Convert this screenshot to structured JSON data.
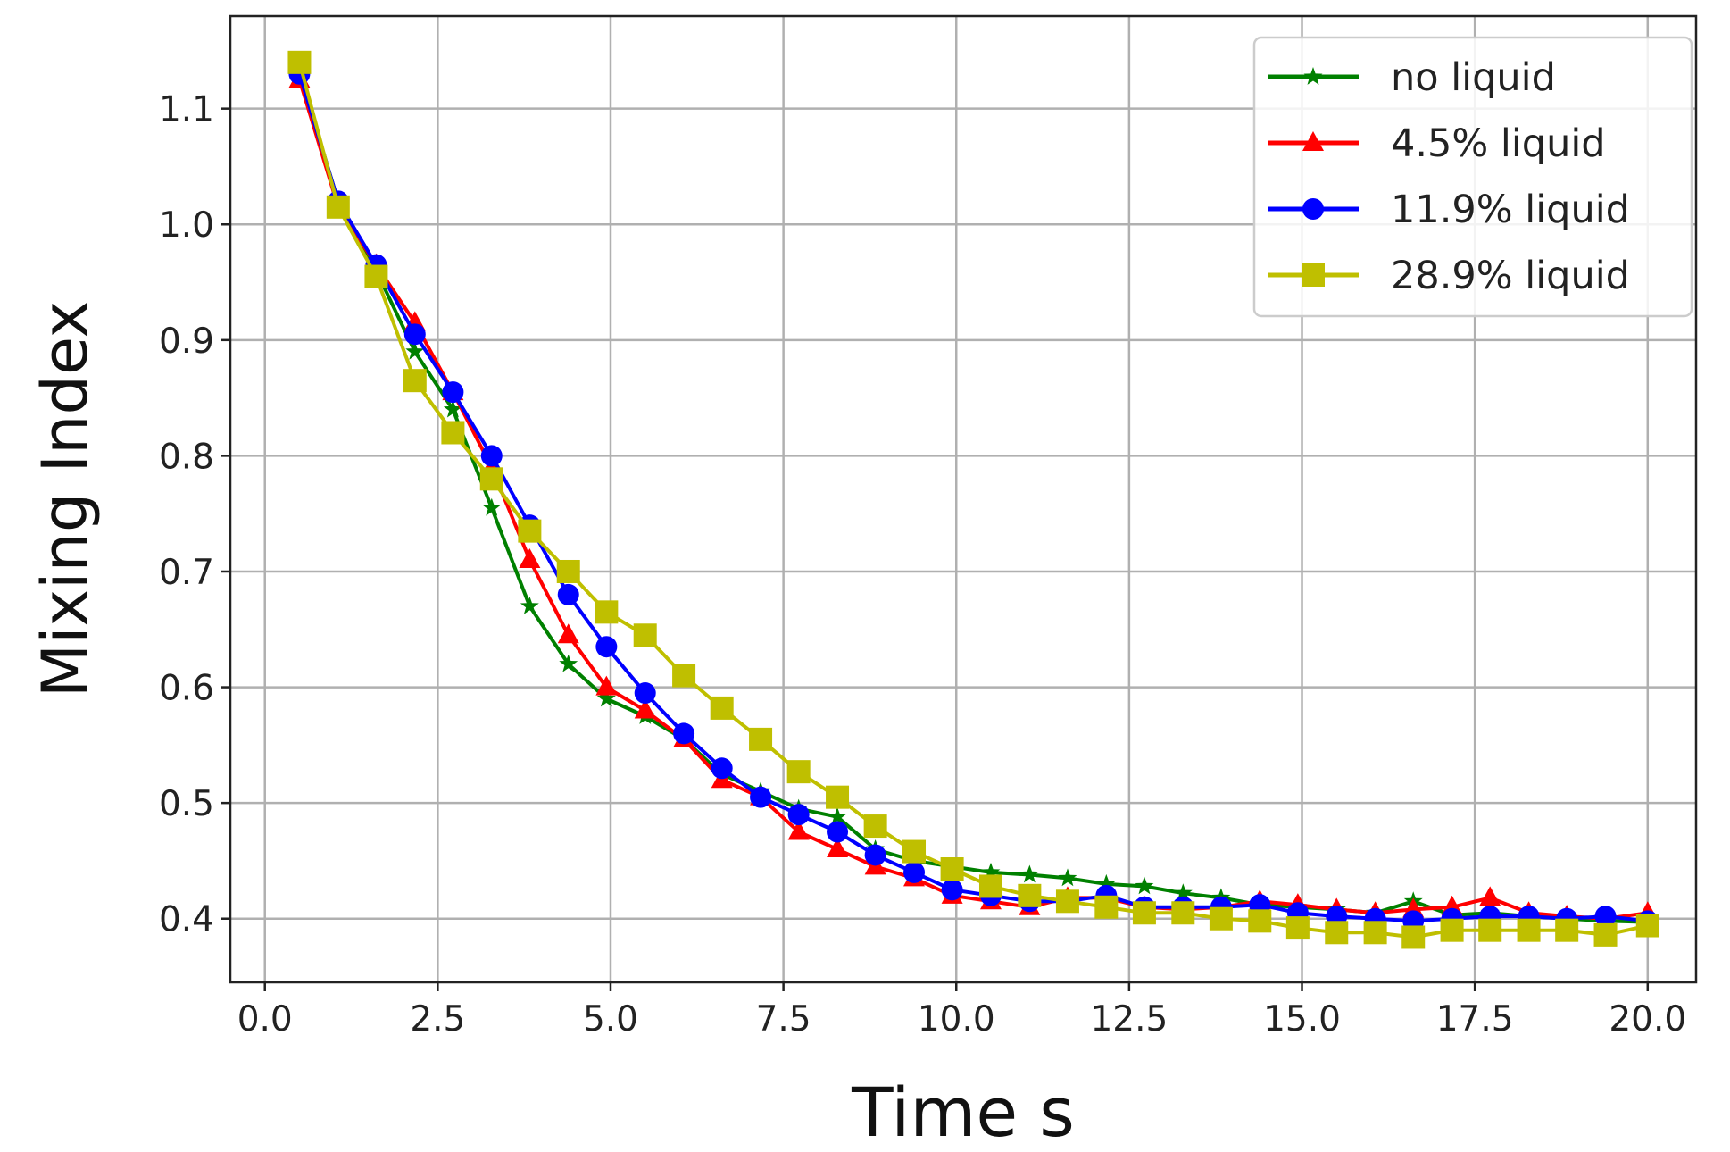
{
  "chart_data": {
    "type": "line",
    "title": "",
    "xlabel": "Time s",
    "ylabel": "Mixing Index",
    "xlim": [
      -0.5,
      20.7
    ],
    "ylim": [
      0.345,
      1.18
    ],
    "x_ticks": [
      "0.0",
      "2.5",
      "5.0",
      "7.5",
      "10.0",
      "12.5",
      "15.0",
      "17.5",
      "20.0"
    ],
    "y_ticks": [
      "0.4",
      "0.5",
      "0.6",
      "0.7",
      "0.8",
      "0.9",
      "1.0",
      "1.1"
    ],
    "grid": true,
    "legend_position": "top-right",
    "x": [
      0.5,
      1.06,
      1.61,
      2.17,
      2.72,
      3.28,
      3.83,
      4.39,
      4.94,
      5.5,
      6.06,
      6.61,
      7.17,
      7.72,
      8.28,
      8.83,
      9.39,
      9.94,
      10.5,
      11.06,
      11.61,
      12.17,
      12.72,
      13.28,
      13.83,
      14.39,
      14.94,
      15.5,
      16.06,
      16.61,
      17.17,
      17.72,
      18.28,
      18.83,
      19.39,
      20.0
    ],
    "series": [
      {
        "name": "no liquid",
        "color": "#008000",
        "marker": "star",
        "values": [
          1.13,
          1.02,
          0.96,
          0.89,
          0.84,
          0.755,
          0.67,
          0.62,
          0.59,
          0.575,
          0.555,
          0.525,
          0.51,
          0.495,
          0.488,
          0.46,
          0.45,
          0.445,
          0.44,
          0.438,
          0.435,
          0.43,
          0.428,
          0.422,
          0.418,
          0.412,
          0.41,
          0.408,
          0.405,
          0.415,
          0.403,
          0.405,
          0.402,
          0.4,
          0.398,
          0.397
        ]
      },
      {
        "name": "4.5% liquid",
        "color": "#ff0000",
        "marker": "triangle",
        "values": [
          1.125,
          1.015,
          0.965,
          0.915,
          0.855,
          0.79,
          0.71,
          0.645,
          0.6,
          0.58,
          0.555,
          0.52,
          0.505,
          0.475,
          0.46,
          0.445,
          0.435,
          0.42,
          0.415,
          0.41,
          0.418,
          0.418,
          0.41,
          0.408,
          0.41,
          0.415,
          0.412,
          0.408,
          0.405,
          0.408,
          0.41,
          0.418,
          0.405,
          0.402,
          0.4,
          0.405
        ]
      },
      {
        "name": "11.9% liquid",
        "color": "#0000ff",
        "marker": "circle",
        "values": [
          1.13,
          1.02,
          0.965,
          0.905,
          0.855,
          0.8,
          0.74,
          0.68,
          0.635,
          0.595,
          0.56,
          0.53,
          0.505,
          0.49,
          0.475,
          0.455,
          0.44,
          0.425,
          0.42,
          0.415,
          0.415,
          0.42,
          0.41,
          0.41,
          0.41,
          0.412,
          0.405,
          0.402,
          0.4,
          0.398,
          0.4,
          0.402,
          0.402,
          0.4,
          0.402,
          0.398
        ]
      },
      {
        "name": "28.9% liquid",
        "color": "#bfbf00",
        "marker": "square",
        "values": [
          1.14,
          1.015,
          0.955,
          0.865,
          0.82,
          0.78,
          0.735,
          0.7,
          0.665,
          0.645,
          0.61,
          0.582,
          0.555,
          0.527,
          0.505,
          0.48,
          0.458,
          0.443,
          0.428,
          0.42,
          0.415,
          0.41,
          0.405,
          0.405,
          0.4,
          0.398,
          0.392,
          0.388,
          0.388,
          0.384,
          0.39,
          0.39,
          0.39,
          0.39,
          0.386,
          0.394
        ]
      }
    ]
  }
}
